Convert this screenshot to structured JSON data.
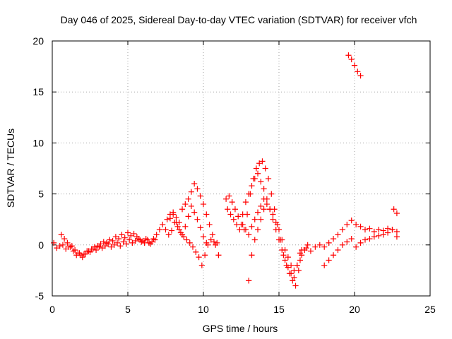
{
  "chart_data": {
    "type": "scatter",
    "title": "Day 046 of 2025, Sidereal Day-to-day VTEC variation (SDTVAR) for receiver vfch",
    "xlabel": "GPS time / hours",
    "ylabel": "SDTVAR / TECUs",
    "xlim": [
      0,
      25
    ],
    "ylim": [
      -5,
      20
    ],
    "xticks": [
      0,
      5,
      10,
      15,
      20,
      25
    ],
    "yticks": [
      -5,
      0,
      5,
      10,
      15,
      20
    ],
    "grid": true,
    "marker": "+",
    "series": [
      {
        "name": "SDTVAR",
        "color": "#ff0000",
        "x": [
          0.1,
          0.3,
          0.5,
          0.7,
          0.9,
          1.1,
          1.3,
          1.5,
          1.7,
          1.9,
          2.1,
          2.3,
          2.5,
          2.7,
          2.9,
          3.1,
          3.3,
          3.5,
          3.7,
          3.9,
          4.1,
          4.3,
          4.5,
          4.7,
          4.9,
          5.1,
          5.3,
          5.5,
          5.7,
          5.9,
          6.1,
          6.3,
          6.5,
          6.7,
          6.9,
          7.1,
          7.3,
          7.5,
          7.7,
          7.9,
          8.1,
          8.3,
          8.5,
          8.7,
          8.9,
          9.1,
          9.3,
          9.5,
          9.7,
          9.9,
          10.1,
          10.3,
          10.5,
          10.7,
          10.9,
          0.6,
          0.8,
          1.0,
          1.2,
          1.4,
          1.6,
          1.8,
          2.0,
          2.2,
          2.4,
          2.6,
          2.8,
          3.0,
          3.2,
          3.4,
          3.6,
          3.8,
          4.0,
          4.2,
          4.4,
          4.6,
          4.8,
          5.0,
          5.2,
          5.4,
          5.6,
          5.8,
          6.0,
          6.2,
          6.4,
          6.6,
          6.8,
          7.6,
          7.8,
          8.0,
          8.2,
          8.4,
          8.6,
          8.8,
          9.0,
          9.2,
          9.4,
          9.6,
          9.8,
          10.0,
          10.2,
          10.4,
          10.6,
          10.8,
          11.0,
          7.8,
          8.0,
          8.2,
          8.4,
          8.6,
          8.8,
          9.0,
          9.2,
          9.4,
          9.6,
          9.8,
          10.0,
          10.2,
          11.5,
          11.7,
          11.9,
          12.1,
          12.3,
          12.5,
          12.7,
          12.9,
          13.1,
          13.3,
          13.5,
          13.7,
          13.9,
          14.1,
          14.3,
          14.5,
          14.7,
          14.9,
          15.1,
          15.3,
          15.5,
          15.7,
          15.9,
          16.1,
          16.3,
          16.5,
          16.7,
          16.9,
          11.6,
          11.8,
          12.0,
          12.2,
          12.4,
          12.6,
          12.8,
          13.0,
          13.2,
          13.4,
          13.6,
          13.8,
          14.0,
          14.2,
          14.4,
          14.6,
          14.8,
          15.0,
          15.2,
          15.4,
          15.6,
          15.8,
          16.0,
          16.2,
          16.4,
          12.6,
          12.8,
          13.0,
          13.2,
          13.4,
          13.6,
          13.8,
          14.0,
          14.2,
          14.4,
          14.6,
          14.8,
          15.0,
          15.2,
          15.4,
          15.6,
          15.8,
          16.0,
          16.2,
          16.4,
          13.0,
          13.2,
          13.4,
          13.6,
          13.8,
          14.0,
          16.5,
          16.8,
          17.1,
          17.4,
          17.7,
          18.0,
          18.3,
          18.6,
          18.9,
          19.2,
          19.5,
          19.8,
          20.1,
          20.4,
          20.7,
          21.0,
          21.3,
          21.6,
          21.9,
          22.2,
          22.5,
          22.8,
          18.0,
          18.3,
          18.6,
          18.9,
          19.2,
          19.5,
          19.8,
          20.1,
          20.4,
          20.7,
          21.0,
          21.3,
          21.6,
          21.9,
          22.2,
          22.5,
          22.8,
          19.6,
          19.8,
          20.0,
          20.2,
          20.4,
          22.6,
          22.8
        ],
        "y": [
          0.2,
          -0.3,
          -0.1,
          0.0,
          -0.4,
          -0.2,
          -0.1,
          -0.5,
          -0.8,
          -1.0,
          -0.9,
          -0.6,
          -0.7,
          -0.4,
          -0.5,
          -0.2,
          -0.3,
          -0.1,
          0.1,
          -0.2,
          0.0,
          0.2,
          -0.1,
          0.3,
          0.1,
          0.5,
          0.2,
          0.4,
          0.6,
          0.3,
          0.2,
          0.5,
          0.1,
          0.6,
          1.0,
          1.5,
          2.0,
          1.5,
          1.0,
          1.4,
          2.2,
          1.8,
          1.2,
          0.8,
          0.5,
          0.2,
          -0.2,
          -0.7,
          -1.2,
          -2.0,
          -1.0,
          0.0,
          0.5,
          0.3,
          0.2,
          1.0,
          0.6,
          0.2,
          -0.2,
          -0.6,
          -1.0,
          -0.8,
          -1.2,
          -0.9,
          -0.6,
          -0.4,
          -0.2,
          -0.1,
          0.1,
          0.3,
          0.2,
          0.5,
          0.4,
          0.8,
          0.6,
          1.0,
          0.7,
          1.2,
          0.9,
          1.1,
          0.8,
          0.5,
          0.4,
          0.6,
          0.2,
          0.3,
          0.5,
          2.5,
          3.0,
          3.2,
          2.7,
          2.2,
          3.5,
          4.0,
          4.5,
          5.2,
          6.0,
          5.5,
          4.8,
          4.0,
          3.0,
          2.0,
          1.0,
          0.0,
          -1.0,
          2.6,
          3.0,
          2.2,
          1.5,
          1.0,
          1.8,
          2.8,
          3.8,
          3.2,
          2.5,
          1.7,
          0.8,
          0.2,
          4.5,
          4.8,
          4.2,
          3.5,
          2.8,
          2.0,
          1.5,
          3.0,
          5.0,
          6.5,
          7.5,
          8.0,
          8.2,
          7.5,
          6.5,
          5.0,
          3.5,
          2.0,
          0.5,
          -1.0,
          -2.0,
          -2.8,
          -3.5,
          -4.0,
          -2.5,
          -1.0,
          -0.5,
          0.0,
          3.5,
          3.0,
          2.5,
          2.0,
          1.5,
          3.0,
          4.2,
          5.0,
          5.8,
          6.5,
          7.0,
          6.2,
          5.5,
          4.5,
          3.5,
          2.5,
          1.5,
          0.5,
          -0.5,
          -1.5,
          -2.2,
          -2.8,
          -3.2,
          -2.0,
          -0.8,
          2.0,
          1.5,
          1.0,
          1.8,
          2.5,
          3.2,
          3.8,
          4.5,
          4.0,
          3.5,
          3.0,
          2.2,
          1.5,
          0.5,
          -0.5,
          -1.2,
          -2.0,
          -2.5,
          -2.0,
          -1.5,
          -3.5,
          -1.0,
          0.5,
          1.5,
          2.5,
          3.5,
          -0.5,
          -0.3,
          -0.6,
          -0.2,
          0.0,
          -0.2,
          0.2,
          0.6,
          1.0,
          1.5,
          2.0,
          2.4,
          2.0,
          1.8,
          1.5,
          1.6,
          1.3,
          1.5,
          1.4,
          1.6,
          1.5,
          1.3,
          -2.0,
          -1.5,
          -1.0,
          -0.5,
          0.0,
          0.3,
          0.6,
          -0.2,
          0.2,
          0.5,
          0.6,
          0.8,
          0.9,
          1.0,
          1.2,
          1.5,
          0.8,
          18.6,
          18.2,
          17.6,
          17.0,
          16.6,
          3.5,
          3.1
        ]
      }
    ]
  }
}
